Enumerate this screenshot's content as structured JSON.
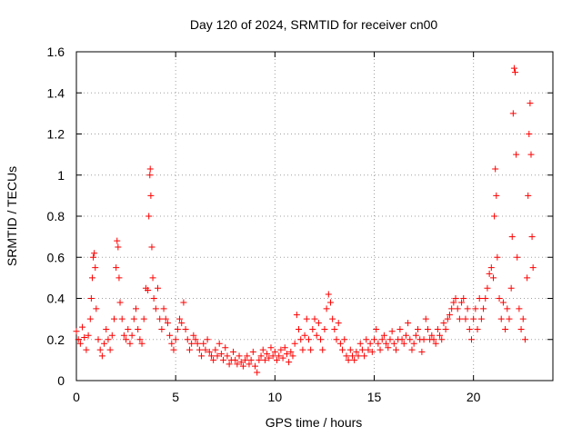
{
  "chart_data": {
    "type": "scatter",
    "title": "Day 120 of 2024, SRMTID for receiver cn00",
    "xlabel": "GPS time / hours",
    "ylabel": "SRMTID / TECUs",
    "xlim": [
      0,
      24
    ],
    "ylim": [
      0,
      1.6
    ],
    "x_ticks": [
      0,
      5,
      10,
      15,
      20
    ],
    "x_tick_labels": [
      "0",
      "5",
      "10",
      "15",
      "20"
    ],
    "y_ticks": [
      0,
      0.2,
      0.4,
      0.6,
      0.8,
      1.0,
      1.2,
      1.4,
      1.6
    ],
    "y_tick_labels": [
      "0",
      "0.2",
      "0.4",
      "0.6",
      "0.8",
      "1",
      "1.2",
      "1.4",
      "1.6"
    ],
    "grid": true,
    "marker": "+",
    "color": "#ff0000",
    "series": [
      {
        "name": "SRMTID",
        "points": [
          [
            0.0,
            0.24
          ],
          [
            0.1,
            0.2
          ],
          [
            0.2,
            0.18
          ],
          [
            0.3,
            0.26
          ],
          [
            0.4,
            0.21
          ],
          [
            0.5,
            0.15
          ],
          [
            0.6,
            0.22
          ],
          [
            0.7,
            0.3
          ],
          [
            0.75,
            0.4
          ],
          [
            0.8,
            0.5
          ],
          [
            0.85,
            0.6
          ],
          [
            0.9,
            0.62
          ],
          [
            0.95,
            0.55
          ],
          [
            1.0,
            0.35
          ],
          [
            1.1,
            0.2
          ],
          [
            1.2,
            0.15
          ],
          [
            1.3,
            0.12
          ],
          [
            1.4,
            0.18
          ],
          [
            1.5,
            0.25
          ],
          [
            1.6,
            0.2
          ],
          [
            1.7,
            0.15
          ],
          [
            1.8,
            0.22
          ],
          [
            1.9,
            0.3
          ],
          [
            2.0,
            0.55
          ],
          [
            2.05,
            0.68
          ],
          [
            2.1,
            0.65
          ],
          [
            2.15,
            0.5
          ],
          [
            2.2,
            0.38
          ],
          [
            2.3,
            0.3
          ],
          [
            2.4,
            0.22
          ],
          [
            2.5,
            0.2
          ],
          [
            2.6,
            0.25
          ],
          [
            2.7,
            0.18
          ],
          [
            2.8,
            0.22
          ],
          [
            2.9,
            0.3
          ],
          [
            3.0,
            0.35
          ],
          [
            3.1,
            0.25
          ],
          [
            3.2,
            0.2
          ],
          [
            3.3,
            0.18
          ],
          [
            3.4,
            0.3
          ],
          [
            3.5,
            0.45
          ],
          [
            3.6,
            0.44
          ],
          [
            3.65,
            0.8
          ],
          [
            3.7,
            1.0
          ],
          [
            3.72,
            1.03
          ],
          [
            3.75,
            0.9
          ],
          [
            3.8,
            0.65
          ],
          [
            3.85,
            0.5
          ],
          [
            3.9,
            0.4
          ],
          [
            4.0,
            0.35
          ],
          [
            4.1,
            0.45
          ],
          [
            4.2,
            0.3
          ],
          [
            4.3,
            0.25
          ],
          [
            4.4,
            0.35
          ],
          [
            4.5,
            0.3
          ],
          [
            4.6,
            0.28
          ],
          [
            4.7,
            0.22
          ],
          [
            4.8,
            0.18
          ],
          [
            4.9,
            0.15
          ],
          [
            5.0,
            0.2
          ],
          [
            5.1,
            0.25
          ],
          [
            5.2,
            0.3
          ],
          [
            5.3,
            0.28
          ],
          [
            5.4,
            0.38
          ],
          [
            5.5,
            0.25
          ],
          [
            5.6,
            0.2
          ],
          [
            5.7,
            0.15
          ],
          [
            5.8,
            0.18
          ],
          [
            5.9,
            0.22
          ],
          [
            6.0,
            0.2
          ],
          [
            6.1,
            0.18
          ],
          [
            6.2,
            0.15
          ],
          [
            6.3,
            0.12
          ],
          [
            6.4,
            0.18
          ],
          [
            6.5,
            0.15
          ],
          [
            6.6,
            0.2
          ],
          [
            6.7,
            0.14
          ],
          [
            6.8,
            0.12
          ],
          [
            6.9,
            0.1
          ],
          [
            7.0,
            0.15
          ],
          [
            7.1,
            0.12
          ],
          [
            7.2,
            0.18
          ],
          [
            7.3,
            0.13
          ],
          [
            7.4,
            0.1
          ],
          [
            7.5,
            0.16
          ],
          [
            7.6,
            0.12
          ],
          [
            7.7,
            0.08
          ],
          [
            7.8,
            0.1
          ],
          [
            7.9,
            0.14
          ],
          [
            8.0,
            0.1
          ],
          [
            8.1,
            0.08
          ],
          [
            8.2,
            0.12
          ],
          [
            8.3,
            0.09
          ],
          [
            8.4,
            0.07
          ],
          [
            8.5,
            0.1
          ],
          [
            8.6,
            0.12
          ],
          [
            8.7,
            0.08
          ],
          [
            8.8,
            0.1
          ],
          [
            8.9,
            0.14
          ],
          [
            9.0,
            0.07
          ],
          [
            9.1,
            0.04
          ],
          [
            9.2,
            0.1
          ],
          [
            9.3,
            0.12
          ],
          [
            9.4,
            0.15
          ],
          [
            9.5,
            0.1
          ],
          [
            9.6,
            0.13
          ],
          [
            9.7,
            0.11
          ],
          [
            9.8,
            0.16
          ],
          [
            9.9,
            0.12
          ],
          [
            10.0,
            0.14
          ],
          [
            10.1,
            0.1
          ],
          [
            10.2,
            0.12
          ],
          [
            10.3,
            0.15
          ],
          [
            10.4,
            0.11
          ],
          [
            10.5,
            0.16
          ],
          [
            10.6,
            0.13
          ],
          [
            10.7,
            0.09
          ],
          [
            10.8,
            0.14
          ],
          [
            10.9,
            0.12
          ],
          [
            11.0,
            0.18
          ],
          [
            11.1,
            0.32
          ],
          [
            11.2,
            0.25
          ],
          [
            11.3,
            0.2
          ],
          [
            11.4,
            0.15
          ],
          [
            11.5,
            0.22
          ],
          [
            11.6,
            0.3
          ],
          [
            11.7,
            0.2
          ],
          [
            11.8,
            0.15
          ],
          [
            11.9,
            0.25
          ],
          [
            12.0,
            0.3
          ],
          [
            12.1,
            0.22
          ],
          [
            12.2,
            0.28
          ],
          [
            12.3,
            0.2
          ],
          [
            12.4,
            0.15
          ],
          [
            12.5,
            0.25
          ],
          [
            12.6,
            0.35
          ],
          [
            12.7,
            0.42
          ],
          [
            12.8,
            0.38
          ],
          [
            12.9,
            0.3
          ],
          [
            13.0,
            0.25
          ],
          [
            13.1,
            0.2
          ],
          [
            13.2,
            0.28
          ],
          [
            13.3,
            0.18
          ],
          [
            13.4,
            0.15
          ],
          [
            13.5,
            0.2
          ],
          [
            13.6,
            0.12
          ],
          [
            13.7,
            0.1
          ],
          [
            13.8,
            0.15
          ],
          [
            13.9,
            0.12
          ],
          [
            14.0,
            0.1
          ],
          [
            14.1,
            0.14
          ],
          [
            14.2,
            0.12
          ],
          [
            14.3,
            0.18
          ],
          [
            14.4,
            0.15
          ],
          [
            14.5,
            0.12
          ],
          [
            14.6,
            0.2
          ],
          [
            14.7,
            0.15
          ],
          [
            14.8,
            0.18
          ],
          [
            14.9,
            0.14
          ],
          [
            15.0,
            0.2
          ],
          [
            15.1,
            0.25
          ],
          [
            15.2,
            0.18
          ],
          [
            15.3,
            0.15
          ],
          [
            15.4,
            0.2
          ],
          [
            15.5,
            0.22
          ],
          [
            15.6,
            0.18
          ],
          [
            15.7,
            0.16
          ],
          [
            15.8,
            0.2
          ],
          [
            15.9,
            0.24
          ],
          [
            16.0,
            0.18
          ],
          [
            16.1,
            0.15
          ],
          [
            16.2,
            0.2
          ],
          [
            16.3,
            0.25
          ],
          [
            16.4,
            0.2
          ],
          [
            16.5,
            0.18
          ],
          [
            16.6,
            0.22
          ],
          [
            16.7,
            0.28
          ],
          [
            16.8,
            0.2
          ],
          [
            16.9,
            0.15
          ],
          [
            17.0,
            0.18
          ],
          [
            17.1,
            0.22
          ],
          [
            17.2,
            0.25
          ],
          [
            17.3,
            0.2
          ],
          [
            17.4,
            0.14
          ],
          [
            17.5,
            0.2
          ],
          [
            17.6,
            0.3
          ],
          [
            17.7,
            0.25
          ],
          [
            17.8,
            0.2
          ],
          [
            17.9,
            0.22
          ],
          [
            18.0,
            0.2
          ],
          [
            18.1,
            0.18
          ],
          [
            18.2,
            0.25
          ],
          [
            18.3,
            0.22
          ],
          [
            18.4,
            0.2
          ],
          [
            18.5,
            0.28
          ],
          [
            18.6,
            0.25
          ],
          [
            18.7,
            0.3
          ],
          [
            18.8,
            0.32
          ],
          [
            18.9,
            0.35
          ],
          [
            19.0,
            0.38
          ],
          [
            19.1,
            0.4
          ],
          [
            19.2,
            0.35
          ],
          [
            19.3,
            0.3
          ],
          [
            19.4,
            0.38
          ],
          [
            19.5,
            0.4
          ],
          [
            19.6,
            0.3
          ],
          [
            19.7,
            0.35
          ],
          [
            19.8,
            0.25
          ],
          [
            19.9,
            0.2
          ],
          [
            20.0,
            0.3
          ],
          [
            20.1,
            0.35
          ],
          [
            20.2,
            0.25
          ],
          [
            20.3,
            0.4
          ],
          [
            20.4,
            0.3
          ],
          [
            20.5,
            0.35
          ],
          [
            20.6,
            0.4
          ],
          [
            20.7,
            0.45
          ],
          [
            20.8,
            0.52
          ],
          [
            20.9,
            0.55
          ],
          [
            21.0,
            0.5
          ],
          [
            21.05,
            0.8
          ],
          [
            21.1,
            1.03
          ],
          [
            21.15,
            0.9
          ],
          [
            21.2,
            0.6
          ],
          [
            21.3,
            0.4
          ],
          [
            21.4,
            0.3
          ],
          [
            21.5,
            0.38
          ],
          [
            21.6,
            0.25
          ],
          [
            21.7,
            0.35
          ],
          [
            21.8,
            0.3
          ],
          [
            21.9,
            0.45
          ],
          [
            21.95,
            0.7
          ],
          [
            22.0,
            1.3
          ],
          [
            22.05,
            1.52
          ],
          [
            22.1,
            1.5
          ],
          [
            22.15,
            1.1
          ],
          [
            22.2,
            0.6
          ],
          [
            22.3,
            0.35
          ],
          [
            22.4,
            0.25
          ],
          [
            22.5,
            0.3
          ],
          [
            22.6,
            0.2
          ],
          [
            22.7,
            0.5
          ],
          [
            22.75,
            0.9
          ],
          [
            22.8,
            1.2
          ],
          [
            22.85,
            1.35
          ],
          [
            22.9,
            1.1
          ],
          [
            22.95,
            0.7
          ],
          [
            23.0,
            0.55
          ]
        ]
      }
    ]
  }
}
